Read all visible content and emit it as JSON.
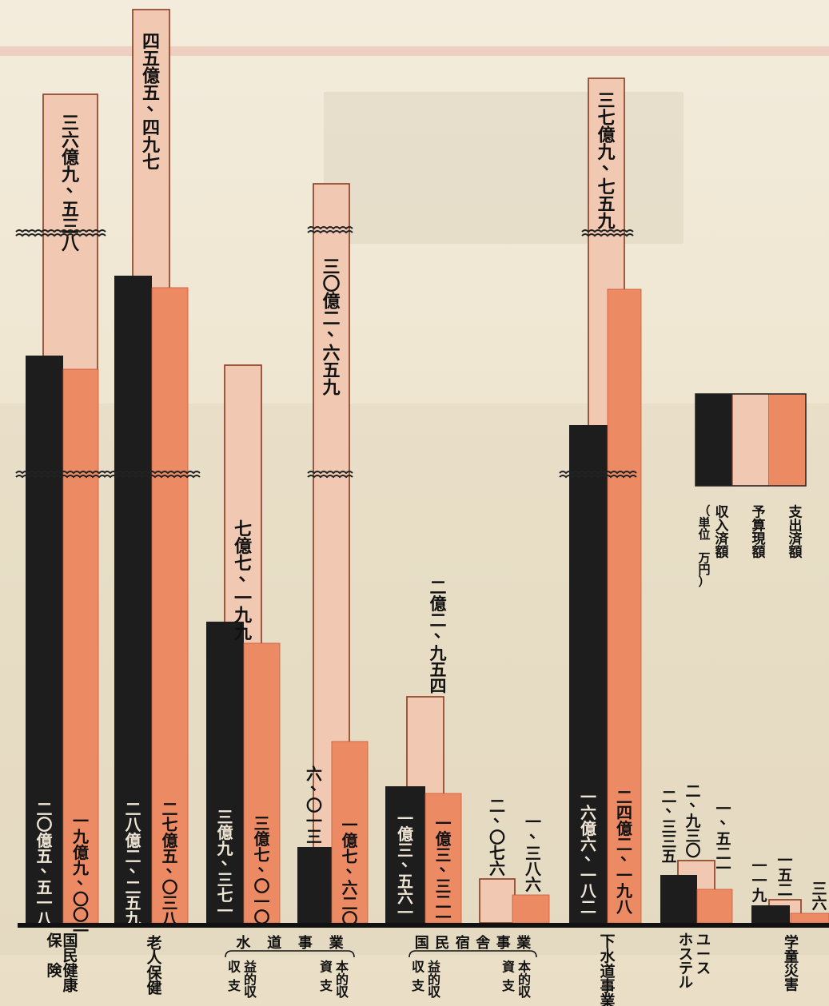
{
  "chart_data": {
    "type": "bar",
    "legend": {
      "position": "right",
      "entries": [
        "収入済額",
        "予算現額",
        "支出済額"
      ],
      "unit_label": "（単位 万円）",
      "colors": [
        "#1d1d1d",
        "#f1c9b3",
        "#ec8a64"
      ]
    },
    "bars": [
      {
        "id": "kokuho-income",
        "series": "収入済額",
        "value": 205518,
        "label": "二〇億五、五一八"
      },
      {
        "id": "kokuho-budget",
        "series": "予算現額",
        "value": 369538,
        "label": "三六億九、五三八"
      },
      {
        "id": "kokuho-expense",
        "series": "支出済額",
        "value": 199001,
        "label": "一九億九、〇〇一"
      },
      {
        "id": "rojin-income",
        "series": "収入済額",
        "value": 282259,
        "label": "二八億二、二五九"
      },
      {
        "id": "rojin-budget",
        "series": "予算現額",
        "value": 455497,
        "label": "四五億五、四九七"
      },
      {
        "id": "rojin-expense",
        "series": "支出済額",
        "value": 275038,
        "label": "二七億五、〇三八"
      },
      {
        "id": "suido-shueki-income",
        "series": "収入済額",
        "value": 39371,
        "label": "三億九、三七一"
      },
      {
        "id": "suido-shueki-budget",
        "series": "予算現額",
        "value": 77199,
        "label": "七億七、一九九"
      },
      {
        "id": "suido-shueki-expense",
        "series": "支出済額",
        "value": 37010,
        "label": "三億七、〇一〇"
      },
      {
        "id": "suido-shihon-income",
        "series": "収入済額",
        "value": 6013,
        "label": "六、〇一三"
      },
      {
        "id": "suido-shihon-budget",
        "series": "予算現額",
        "value": 302659,
        "label": "三〇億二、六五九"
      },
      {
        "id": "suido-shihon-expense",
        "series": "支出済額",
        "value": 17620,
        "label": "一億七、六二〇"
      },
      {
        "id": "shukusha-shueki-income",
        "series": "収入済額",
        "value": 13561,
        "label": "一億三、五六一"
      },
      {
        "id": "shukusha-shueki-budget",
        "series": "予算現額",
        "value": 22954,
        "label": "二億二、九五四"
      },
      {
        "id": "shukusha-shueki-expense",
        "series": "支出済額",
        "value": 13321,
        "label": "一億三、三二一"
      },
      {
        "id": "shukusha-shihon-budget",
        "series": "予算現額",
        "value": 2076,
        "label": "二、〇七六"
      },
      {
        "id": "shukusha-shihon-expense",
        "series": "支出済額",
        "value": 1386,
        "label": "一、三八六"
      },
      {
        "id": "gesuido-income",
        "series": "収入済額",
        "value": 166182,
        "label": "一六億六、一八二"
      },
      {
        "id": "gesuido-budget",
        "series": "予算現額",
        "value": 379759,
        "label": "三七億九、七五九"
      },
      {
        "id": "gesuido-expense",
        "series": "支出済額",
        "value": 242198,
        "label": "二四億二、一九八"
      },
      {
        "id": "hostel-income",
        "series": "収入済額",
        "value": 2335,
        "label": "二、三三五"
      },
      {
        "id": "hostel-budget",
        "series": "予算現額",
        "value": 2930,
        "label": "二、九三〇"
      },
      {
        "id": "hostel-expense",
        "series": "支出済額",
        "value": 1521,
        "label": "一、五二一"
      },
      {
        "id": "gakudo-income",
        "series": "収入済額",
        "value": 119,
        "label": "一一九"
      },
      {
        "id": "gakudo-budget",
        "series": "予算現額",
        "value": 152,
        "label": "一五二"
      },
      {
        "id": "gakudo-expense",
        "series": "支出済額",
        "value": 36,
        "label": "三六"
      }
    ],
    "categories": [
      {
        "id": "kokuho",
        "label": "国民健康保険"
      },
      {
        "id": "rojin",
        "label": "老人保健"
      },
      {
        "id": "suido",
        "label": "水道事業",
        "subgroups": [
          "収益的収支",
          "資本的収支"
        ]
      },
      {
        "id": "shukusha",
        "label": "国民宿舎事業",
        "subgroups": [
          "収益的収支",
          "資本的収支"
        ]
      },
      {
        "id": "gesuido",
        "label": "下水道事業"
      },
      {
        "id": "hostel",
        "label": "ユースホステル"
      },
      {
        "id": "gakudo",
        "label": "学童災害"
      }
    ]
  }
}
